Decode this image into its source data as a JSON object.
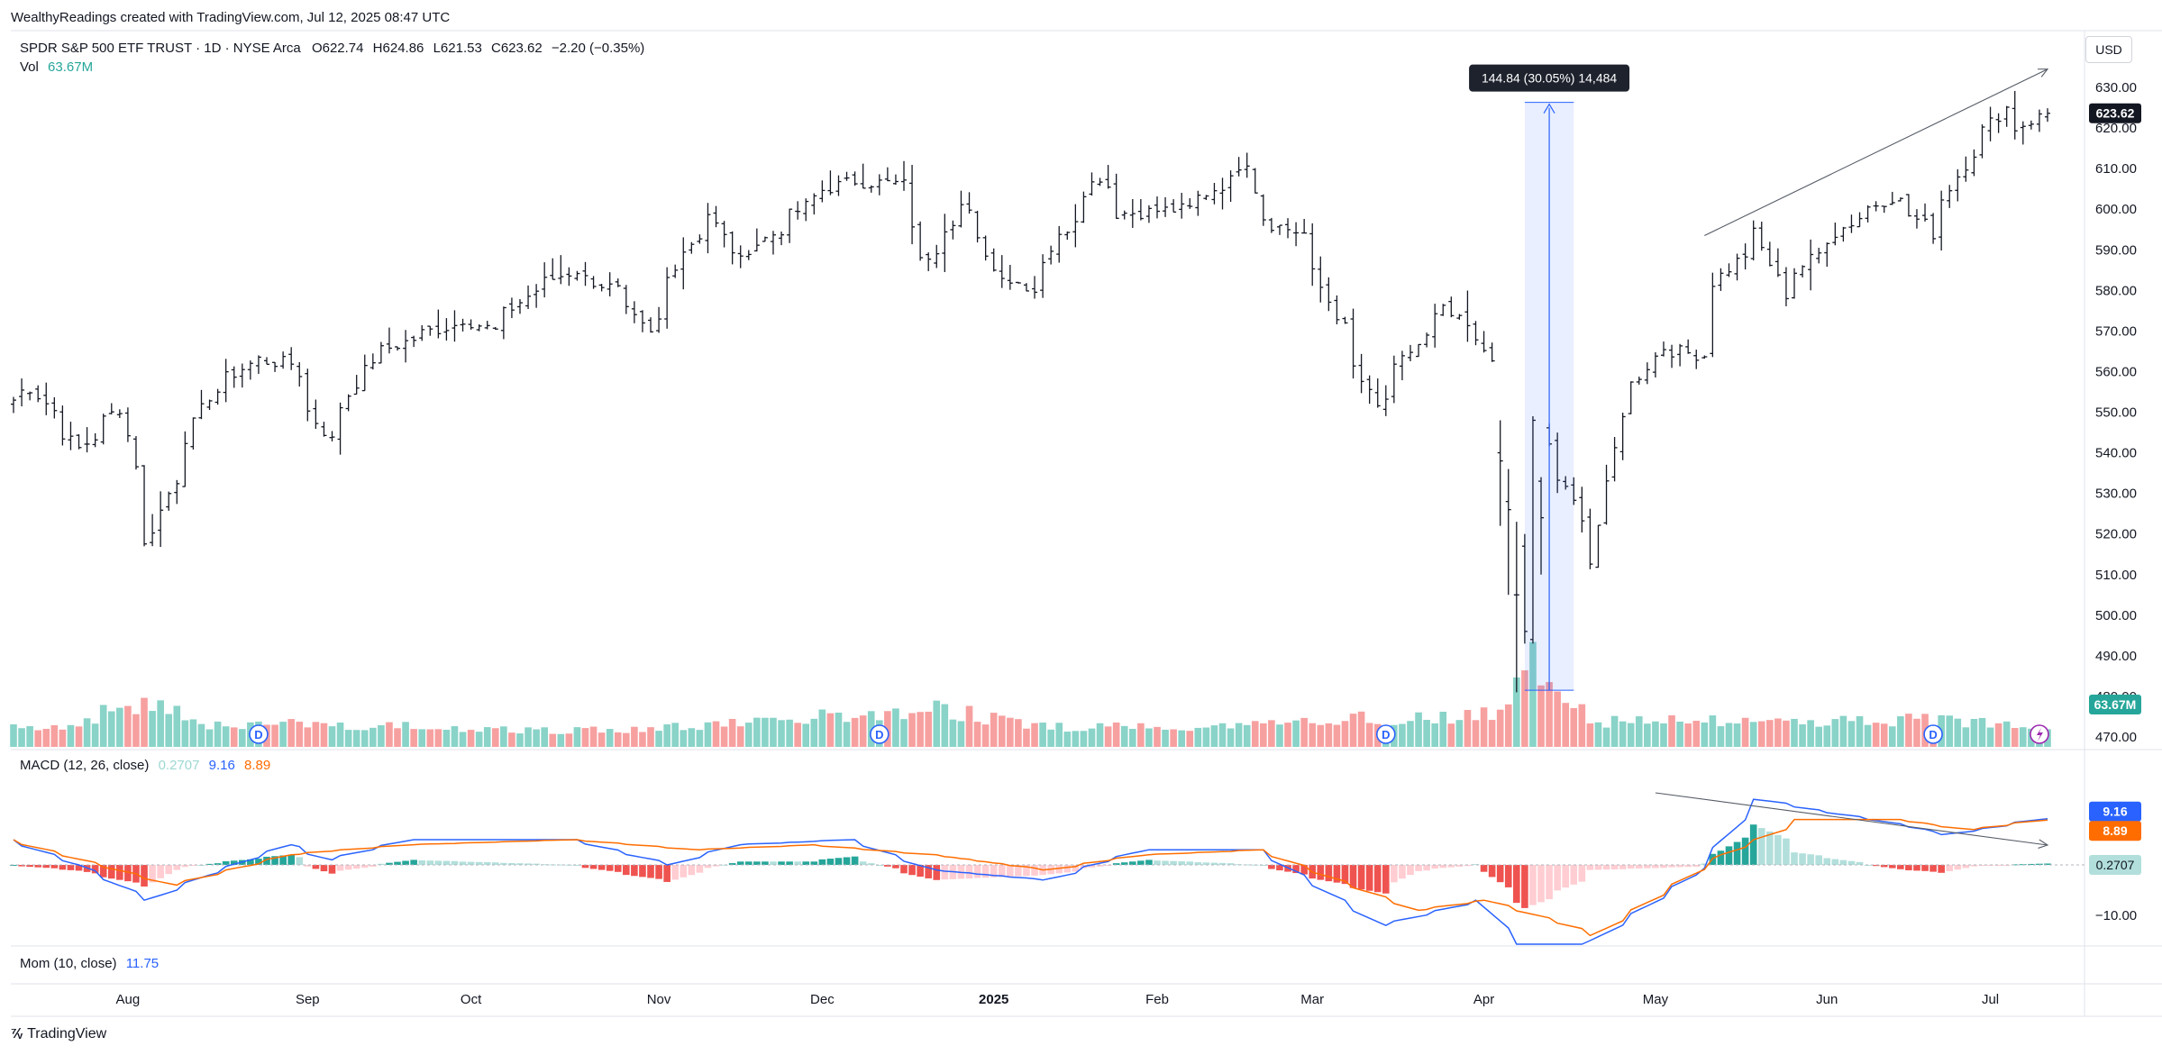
{
  "attribution": "WealthyReadings created with TradingView.com, Jul 12, 2025 08:47 UTC",
  "symbol_line": "SPDR S&P 500 ETF TRUST · 1D · NYSE Arca",
  "ohlc": {
    "o_label": "O",
    "o": "622.74",
    "h_label": "H",
    "h": "624.86",
    "l_label": "L",
    "l": "621.53",
    "c_label": "C",
    "c": "623.62",
    "change": "−2.20 (−0.35%)"
  },
  "vol": {
    "label": "Vol",
    "value": "63.67M"
  },
  "macd": {
    "label": "MACD (12, 26, close)",
    "hist": "0.2707",
    "macd": "9.16",
    "signal": "8.89"
  },
  "mom": {
    "label": "Mom (10, close)",
    "value": "11.75"
  },
  "currency": "USD",
  "measure_tooltip": "144.84 (30.05%) 14,484",
  "last_price_badge": "623.62",
  "vol_badge": "63.67M",
  "macd_badges": {
    "macd": "9.16",
    "signal": "8.89",
    "hist": "0.2707"
  },
  "macd_tick": "−10.00",
  "event_marker": "D",
  "footer": "TradingView",
  "colors": {
    "up_volume": "#89d3c8",
    "down_volume": "#f7a0a0",
    "hist_pos_strong": "#26a69a",
    "hist_pos_weak": "#b2dfdb",
    "hist_neg_strong": "#ef5350",
    "hist_neg_weak": "#ffcdd2",
    "macd_line": "#2962ff",
    "signal_line": "#ff6d00",
    "price_badge": "#131722",
    "vol_badge": "#26a69a"
  },
  "chart_data": {
    "type": "ohlc",
    "interval": "1D",
    "y_axis": {
      "ticks": [
        470,
        480,
        490,
        500,
        510,
        520,
        530,
        540,
        550,
        560,
        570,
        580,
        590,
        600,
        610,
        620,
        630
      ],
      "min": 466,
      "max": 634
    },
    "x_axis": {
      "ticks": [
        "Aug",
        "Sep",
        "Oct",
        "Nov",
        "Dec",
        "2025",
        "Feb",
        "Mar",
        "Apr",
        "May",
        "Jun",
        "Jul"
      ]
    },
    "close_anchors": [
      [
        "2024-07-12",
        553
      ],
      [
        "2024-07-16",
        556
      ],
      [
        "2024-07-24",
        541
      ],
      [
        "2024-07-31",
        551
      ],
      [
        "2024-08-05",
        517
      ],
      [
        "2024-08-08",
        530
      ],
      [
        "2024-08-15",
        554
      ],
      [
        "2024-08-23",
        563
      ],
      [
        "2024-08-29",
        562
      ],
      [
        "2024-09-06",
        543
      ],
      [
        "2024-09-13",
        563
      ],
      [
        "2024-09-20",
        568
      ],
      [
        "2024-09-30",
        573
      ],
      [
        "2024-10-04",
        570
      ],
      [
        "2024-10-11",
        580
      ],
      [
        "2024-10-18",
        585
      ],
      [
        "2024-10-25",
        580
      ],
      [
        "2024-10-31",
        569
      ],
      [
        "2024-11-06",
        590
      ],
      [
        "2024-11-11",
        599
      ],
      [
        "2024-11-15",
        587
      ],
      [
        "2024-11-22",
        595
      ],
      [
        "2024-11-29",
        603
      ],
      [
        "2024-12-06",
        607
      ],
      [
        "2024-12-16",
        606
      ],
      [
        "2024-12-18",
        587
      ],
      [
        "2024-12-26",
        601
      ],
      [
        "2025-01-02",
        585
      ],
      [
        "2025-01-10",
        580
      ],
      [
        "2025-01-17",
        598
      ],
      [
        "2025-01-23",
        608
      ],
      [
        "2025-01-27",
        599
      ],
      [
        "2025-02-07",
        600
      ],
      [
        "2025-02-19",
        612
      ],
      [
        "2025-02-21",
        598
      ],
      [
        "2025-02-28",
        594
      ],
      [
        "2025-03-06",
        574
      ],
      [
        "2025-03-13",
        551
      ],
      [
        "2025-03-19",
        565
      ],
      [
        "2025-03-25",
        575
      ],
      [
        "2025-04-02",
        564
      ],
      [
        "2025-04-04",
        505
      ],
      [
        "2025-04-08",
        496
      ],
      [
        "2025-04-09",
        548
      ],
      [
        "2025-04-21",
        513
      ],
      [
        "2025-04-25",
        550
      ],
      [
        "2025-05-02",
        566
      ],
      [
        "2025-05-09",
        564
      ],
      [
        "2025-05-12",
        582
      ],
      [
        "2025-05-19",
        594
      ],
      [
        "2025-05-23",
        579
      ],
      [
        "2025-05-30",
        589
      ],
      [
        "2025-06-06",
        598
      ],
      [
        "2025-06-12",
        603
      ],
      [
        "2025-06-20",
        594
      ],
      [
        "2025-06-27",
        614
      ],
      [
        "2025-07-03",
        625
      ],
      [
        "2025-07-07",
        620
      ],
      [
        "2025-07-11",
        623.62
      ]
    ],
    "volume_anchors_m": [
      [
        "2024-07-12",
        52
      ],
      [
        "2024-07-24",
        60
      ],
      [
        "2024-08-05",
        140
      ],
      [
        "2024-08-15",
        60
      ],
      [
        "2024-09-06",
        65
      ],
      [
        "2024-09-20",
        55
      ],
      [
        "2024-10-15",
        45
      ],
      [
        "2024-11-06",
        55
      ],
      [
        "2024-12-18",
        100
      ],
      [
        "2024-12-20",
        110
      ],
      [
        "2025-01-10",
        55
      ],
      [
        "2025-02-21",
        60
      ],
      [
        "2025-03-10",
        85
      ],
      [
        "2025-03-13",
        70
      ],
      [
        "2025-04-03",
        90
      ],
      [
        "2025-04-04",
        150
      ],
      [
        "2025-04-07",
        250
      ],
      [
        "2025-04-09",
        240
      ],
      [
        "2025-04-21",
        70
      ],
      [
        "2025-05-12",
        70
      ],
      [
        "2025-06-20",
        75
      ],
      [
        "2025-07-11",
        63.67
      ]
    ],
    "macd_anchors": [
      [
        "2024-07-12",
        5
      ],
      [
        "2024-07-24",
        0
      ],
      [
        "2024-08-05",
        -7
      ],
      [
        "2024-08-15",
        -2
      ],
      [
        "2024-08-29",
        4
      ],
      [
        "2024-09-06",
        1
      ],
      [
        "2024-09-20",
        5
      ],
      [
        "2024-10-18",
        5
      ],
      [
        "2024-11-04",
        0
      ],
      [
        "2024-11-15",
        4
      ],
      [
        "2024-12-06",
        5
      ],
      [
        "2024-12-20",
        -1
      ],
      [
        "2025-01-13",
        -3
      ],
      [
        "2025-01-31",
        3
      ],
      [
        "2025-02-21",
        3
      ],
      [
        "2025-03-14",
        -12
      ],
      [
        "2025-03-31",
        -7
      ],
      [
        "2025-04-08",
        -18
      ],
      [
        "2025-04-21",
        -15
      ],
      [
        "2025-05-08",
        -2
      ],
      [
        "2025-05-19",
        13
      ],
      [
        "2025-06-09",
        9
      ],
      [
        "2025-06-23",
        6
      ],
      [
        "2025-07-11",
        9.16
      ]
    ],
    "signal_anchors": [
      [
        "2024-07-12",
        5
      ],
      [
        "2024-08-09",
        -4
      ],
      [
        "2024-08-29",
        2
      ],
      [
        "2024-09-20",
        4
      ],
      [
        "2024-10-18",
        5
      ],
      [
        "2024-11-08",
        3
      ],
      [
        "2024-11-29",
        4
      ],
      [
        "2024-12-20",
        2
      ],
      [
        "2025-01-13",
        -1
      ],
      [
        "2025-01-31",
        2
      ],
      [
        "2025-02-21",
        3
      ],
      [
        "2025-03-20",
        -9
      ],
      [
        "2025-04-01",
        -7
      ],
      [
        "2025-04-21",
        -14
      ],
      [
        "2025-05-13",
        2
      ],
      [
        "2025-05-27",
        9
      ],
      [
        "2025-06-13",
        9
      ],
      [
        "2025-06-27",
        7
      ],
      [
        "2025-07-11",
        8.89
      ]
    ],
    "macd_axis_tick": -10
  }
}
